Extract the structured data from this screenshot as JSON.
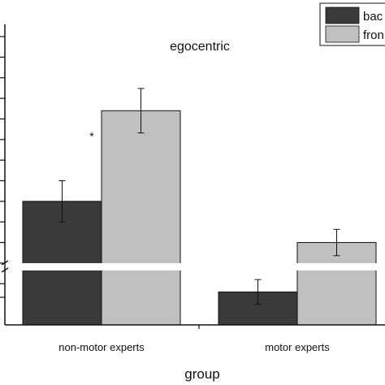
{
  "chart_data": {
    "type": "bar",
    "title": "egocentric",
    "xlabel": "group",
    "ylabel": "",
    "categories": [
      "non-motor experts",
      "motor experts"
    ],
    "series": [
      {
        "name": "bac",
        "values": [
          5.5,
          4.4
        ],
        "errors": [
          0.25,
          0.15
        ],
        "color": "#3a3a3a"
      },
      {
        "name": "fron",
        "values": [
          6.6,
          5.0
        ],
        "errors": [
          0.27,
          0.16
        ],
        "color": "#c0c0c0"
      }
    ],
    "ylim": [
      4.0,
      7.5
    ],
    "axis_break": true,
    "significance": [
      {
        "category": "non-motor experts",
        "label": "*"
      }
    ],
    "legend_position": "top-right",
    "grid": false
  }
}
